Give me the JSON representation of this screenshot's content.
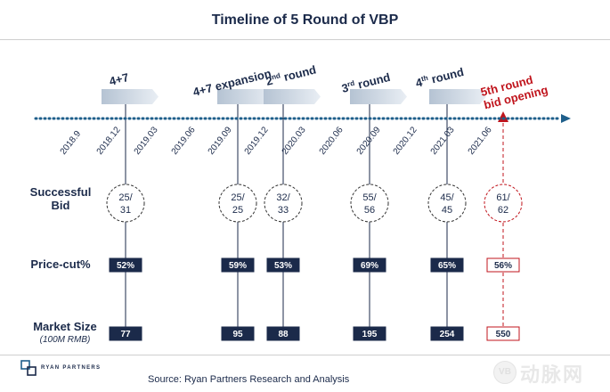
{
  "title": "Timeline of 5 Round of VBP",
  "colors": {
    "navy": "#1b2a4a",
    "dotted_axis": "#1f5f8b",
    "highlight_red": "#c0141c",
    "arrow_gradient_start": "#b5c3d3",
    "arrow_gradient_end": "#e9eef4",
    "circle_stroke": "#333333"
  },
  "timeline": {
    "ticks": [
      "2018.9",
      "2018.12",
      "2019.03",
      "2019.06",
      "2019.09",
      "2019.12",
      "2020.03",
      "2020.06",
      "2020.09",
      "2020.12",
      "2021.03",
      "2021.06"
    ]
  },
  "rounds": [
    {
      "label": "4+7",
      "label_sup": "",
      "label_rest": "",
      "bid_top": "25/",
      "bid_bottom": "31",
      "price_cut": "52%",
      "market_size": "77",
      "highlight": false
    },
    {
      "label": "4+7 expansion",
      "label_sup": "",
      "label_rest": "",
      "bid_top": "25/",
      "bid_bottom": "25",
      "price_cut": "59%",
      "market_size": "95",
      "highlight": false
    },
    {
      "label": "2",
      "label_sup": "nd",
      "label_rest": " round",
      "bid_top": "32/",
      "bid_bottom": "33",
      "price_cut": "53%",
      "market_size": "88",
      "highlight": false
    },
    {
      "label": "3",
      "label_sup": "rd",
      "label_rest": " round",
      "bid_top": "55/",
      "bid_bottom": "56",
      "price_cut": "69%",
      "market_size": "195",
      "highlight": false
    },
    {
      "label": "4",
      "label_sup": "th",
      "label_rest": " round",
      "bid_top": "45/",
      "bid_bottom": "45",
      "price_cut": "65%",
      "market_size": "254",
      "highlight": false
    },
    {
      "label": "5th round",
      "label_line2": "bid opening",
      "label_sup": "",
      "label_rest": "",
      "bid_top": "61/",
      "bid_bottom": "62",
      "price_cut": "56%",
      "market_size": "550",
      "highlight": true
    }
  ],
  "row_labels": {
    "successful_bid_line1": "Successful",
    "successful_bid_line2": "Bid",
    "price_cut": "Price-cut%",
    "market_size": "Market Size",
    "market_size_unit": "(100M RMB)"
  },
  "source": "Source: Ryan Partners Research and Analysis",
  "logo": {
    "text": "RYAN PARTNERS"
  },
  "watermark": {
    "text": "动脉网",
    "badge": "VB"
  }
}
